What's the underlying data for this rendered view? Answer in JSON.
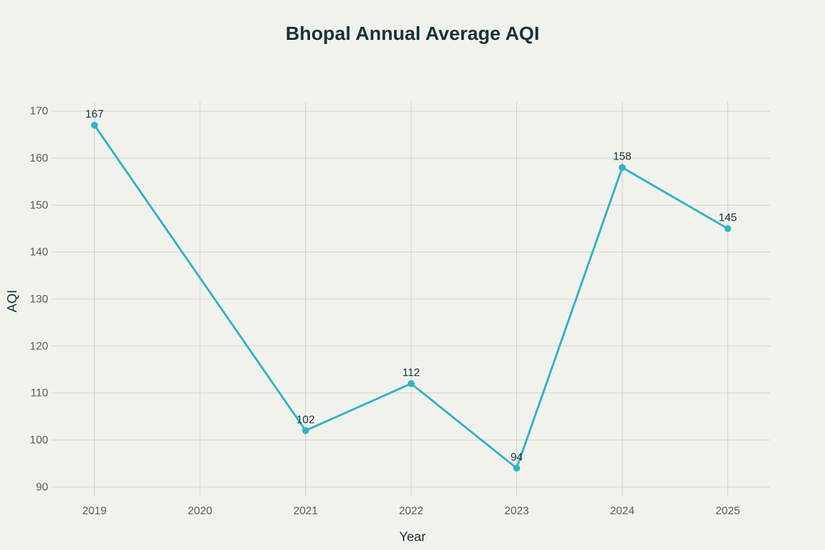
{
  "chart_data": {
    "type": "line",
    "title": "Bhopal Annual Average AQI",
    "xlabel": "Year",
    "ylabel": "AQI",
    "x_ticks": [
      "2019",
      "2020",
      "2021",
      "2022",
      "2023",
      "2024",
      "2025"
    ],
    "y_ticks": [
      90,
      100,
      110,
      120,
      130,
      140,
      150,
      160,
      170
    ],
    "ylim": [
      88,
      172
    ],
    "xlim": [
      2018.6,
      2025.4
    ],
    "grid": true,
    "series": [
      {
        "name": "AQI",
        "color": "#2fb3c6",
        "points": [
          {
            "x": 2019,
            "y": 167
          },
          {
            "x": 2021,
            "y": 102
          },
          {
            "x": 2022,
            "y": 112
          },
          {
            "x": 2023,
            "y": 94
          },
          {
            "x": 2024,
            "y": 158
          },
          {
            "x": 2025,
            "y": 145
          }
        ]
      }
    ]
  }
}
